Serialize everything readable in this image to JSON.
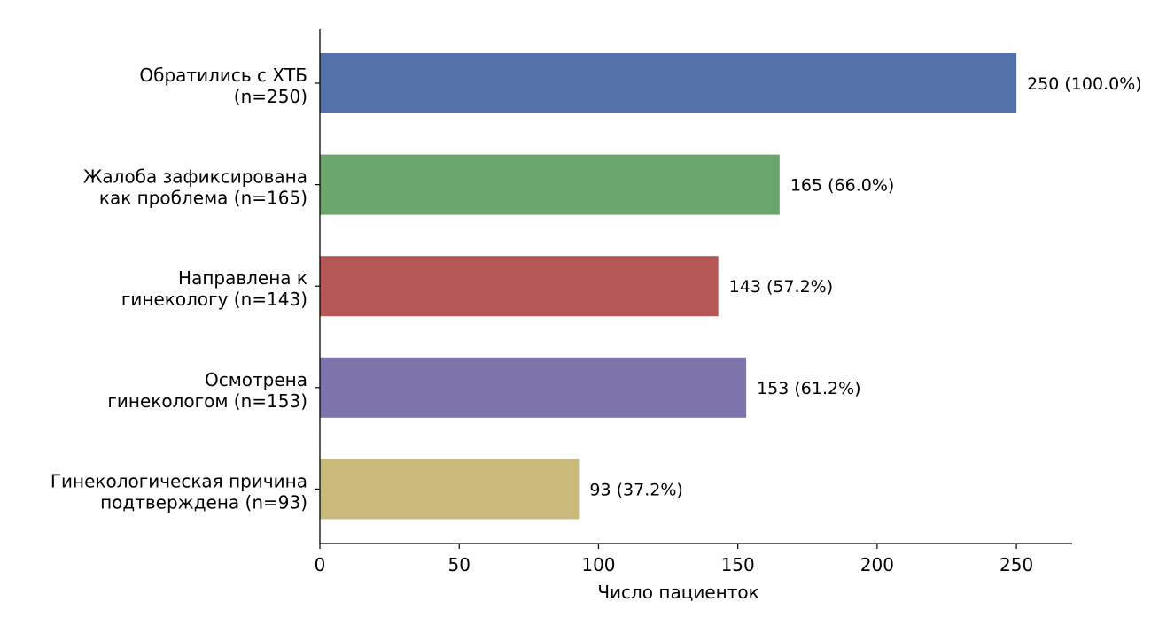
{
  "chart_data": {
    "type": "bar",
    "orientation": "horizontal",
    "categories": [
      [
        "Обратились с ХТБ",
        "(n=250)"
      ],
      [
        "Жалоба зафиксирована",
        "как проблема (n=165)"
      ],
      [
        "Направлена к",
        "гинекологу (n=143)"
      ],
      [
        "Осмотрена",
        "гинекологом (n=153)"
      ],
      [
        "Гинекологическая причина",
        "подтверждена (n=93)"
      ]
    ],
    "values": [
      250,
      165,
      143,
      153,
      93
    ],
    "data_labels": [
      "250 (100.0%)",
      "165 (66.0%)",
      "143 (57.2%)",
      "153 (61.2%)",
      "93 (37.2%)"
    ],
    "colors": [
      "#5471a9",
      "#6aa56d",
      "#b55755",
      "#7f73ab",
      "#c9b97b"
    ],
    "xlabel": "Число пациенток",
    "xticks": [
      0,
      50,
      100,
      150,
      200,
      250
    ],
    "xlim": [
      0,
      270
    ],
    "grid": false
  }
}
